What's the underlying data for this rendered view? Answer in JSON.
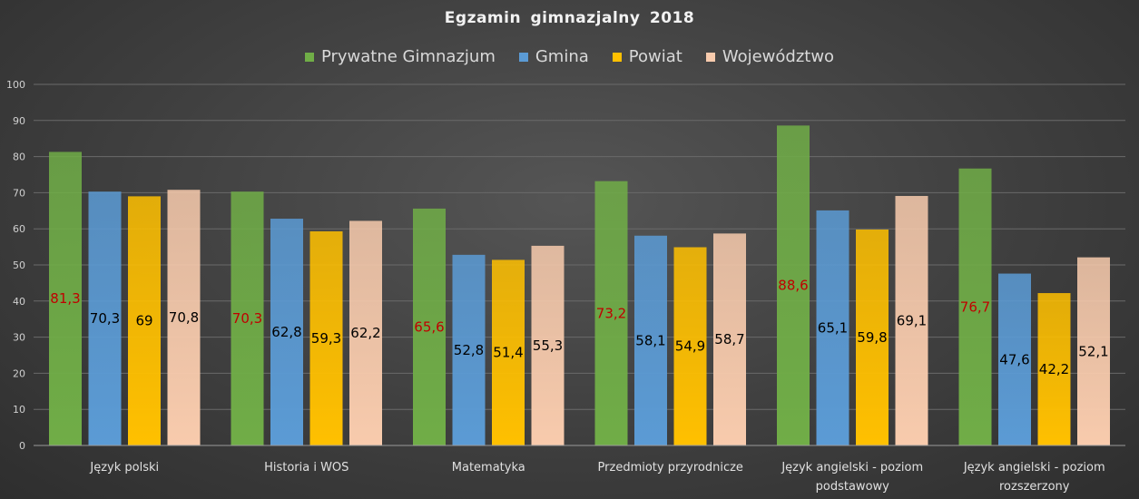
{
  "chart_data": {
    "type": "bar",
    "title": "Egzamin  gimnazjalny  2018",
    "categories": [
      [
        "Język polski"
      ],
      [
        "Historia i WOS"
      ],
      [
        "Matematyka"
      ],
      [
        "Przedmioty przyrodnicze"
      ],
      [
        "Język angielski - poziom",
        "podstawowy"
      ],
      [
        "Język angielski - poziom",
        "rozszerzony"
      ]
    ],
    "series": [
      {
        "name": "Prywatne Gimnazjum",
        "color": "#70ad47",
        "label_color": "#c00000",
        "values": [
          81.3,
          70.3,
          65.6,
          73.2,
          88.6,
          76.7
        ],
        "labels": [
          "81,3",
          "70,3",
          "65,6",
          "73,2",
          "88,6",
          "76,7"
        ]
      },
      {
        "name": "Gmina",
        "color": "#5b9bd5",
        "label_color": "#000000",
        "values": [
          70.3,
          62.8,
          52.8,
          58.1,
          65.1,
          47.6
        ],
        "labels": [
          "70,3",
          "62,8",
          "52,8",
          "58,1",
          "65,1",
          "47,6"
        ]
      },
      {
        "name": "Powiat",
        "color": "#ffc000",
        "label_color": "#000000",
        "values": [
          69,
          59.3,
          51.4,
          54.9,
          59.8,
          42.2
        ],
        "labels": [
          "69",
          "59,3",
          "51,4",
          "54,9",
          "59,8",
          "42,2"
        ]
      },
      {
        "name": "Województwo",
        "color": "#f8cbad",
        "label_color": "#000000",
        "values": [
          70.8,
          62.2,
          55.3,
          58.7,
          69.1,
          52.1
        ],
        "labels": [
          "70,8",
          "62,2",
          "55,3",
          "58,7",
          "69,1",
          "52,1"
        ]
      }
    ],
    "ylim": [
      0,
      100
    ],
    "yticks": [
      0,
      10,
      20,
      30,
      40,
      50,
      60,
      70,
      80,
      90,
      100
    ],
    "grid": true,
    "legend_position": "top"
  }
}
